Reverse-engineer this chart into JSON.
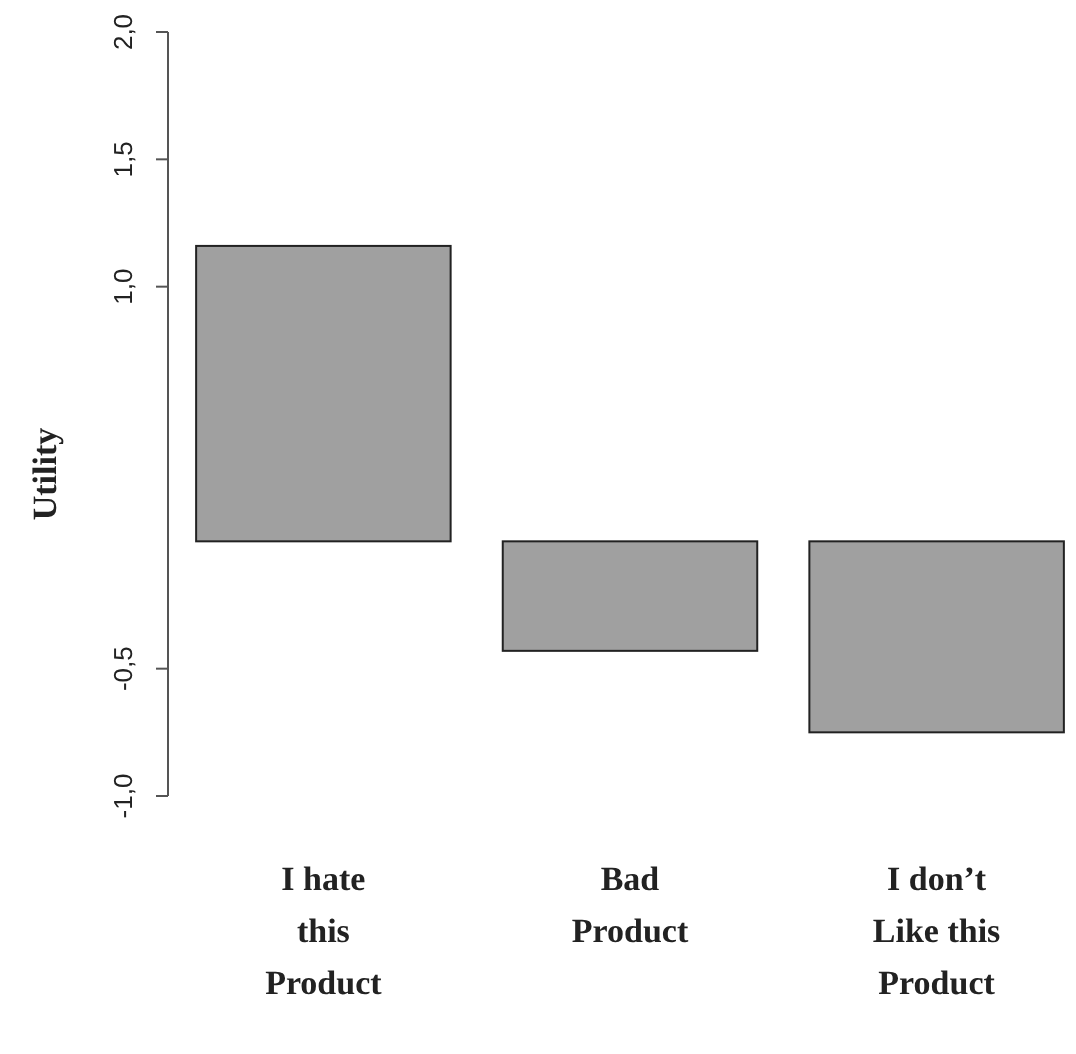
{
  "chart_data": {
    "type": "bar",
    "ylabel": "Utility",
    "categories": [
      "I hate this Product",
      "Bad Product",
      "I don’t Like this Product"
    ],
    "series": [
      {
        "color": "#a0a0a0",
        "values": [
          1.16,
          -0.43,
          -0.75
        ]
      }
    ],
    "ylim": [
      -1.0,
      2.0
    ],
    "yticks": [
      {
        "value": -1,
        "label": "-1,0"
      },
      {
        "value": -0.5,
        "label": "-0,5"
      },
      {
        "value": 1,
        "label": "1,0"
      },
      {
        "value": 1.5,
        "label": "1,5"
      },
      {
        "value": 2,
        "label": "2,0"
      }
    ]
  }
}
